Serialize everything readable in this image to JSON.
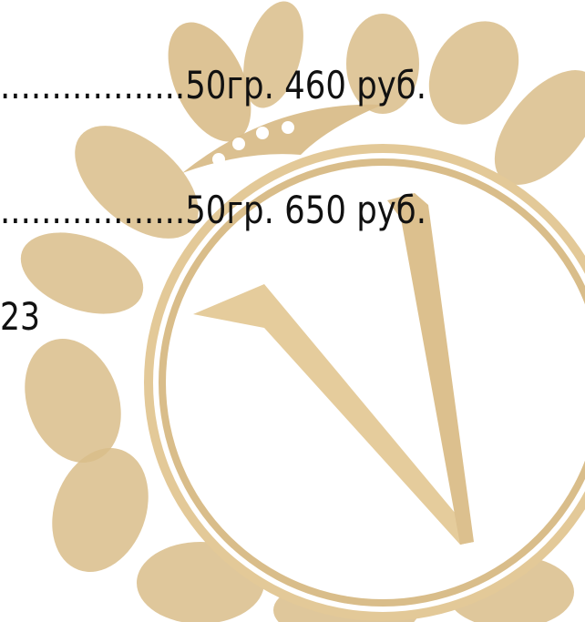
{
  "menu": {
    "items": [
      "..................50гр. 460 руб.",
      "..................50гр. 650 руб."
    ],
    "page_number": "23"
  }
}
